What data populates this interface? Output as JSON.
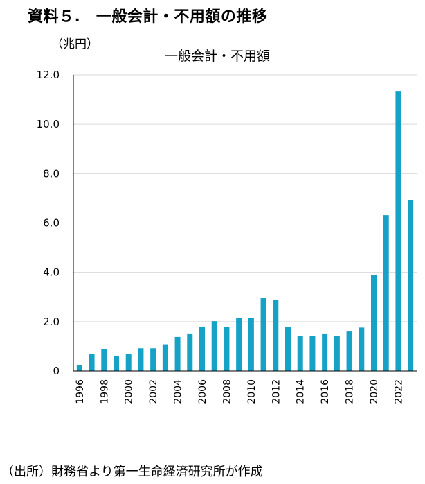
{
  "document": {
    "title": "資料５.　一般会計・不用額の推移",
    "unit": "（兆円）",
    "source": "（出所）財務省より第一生命経済研究所が作成"
  },
  "colors": {
    "bar": "#16a1c7",
    "grid": "#d9d9d9",
    "axis": "#000000"
  },
  "chart_data": {
    "type": "bar",
    "title": "一般会計・不用額",
    "xlabel": "",
    "ylabel": "（兆円）",
    "ylim": [
      0,
      12
    ],
    "yticks": [
      0,
      2,
      4,
      6,
      8,
      10,
      12
    ],
    "ytick_labels": [
      "0",
      "2.0",
      "4.0",
      "6.0",
      "8.0",
      "10.0",
      "12.0"
    ],
    "grid": true,
    "categories": [
      1996,
      1997,
      1998,
      1999,
      2000,
      2001,
      2002,
      2003,
      2004,
      2005,
      2006,
      2007,
      2008,
      2009,
      2010,
      2011,
      2012,
      2013,
      2014,
      2015,
      2016,
      2017,
      2018,
      2019,
      2020,
      2021,
      2022,
      2023
    ],
    "xtick_labels": [
      "1996",
      "1998",
      "2000",
      "2002",
      "2004",
      "2006",
      "2008",
      "2010",
      "2012",
      "2014",
      "2016",
      "2018",
      "2020",
      "2022"
    ],
    "series": [
      {
        "name": "一般会計・不用額",
        "values": [
          0.25,
          0.7,
          0.88,
          0.62,
          0.7,
          0.92,
          0.92,
          1.08,
          1.38,
          1.52,
          1.8,
          2.02,
          1.8,
          2.14,
          2.14,
          2.95,
          2.88,
          1.78,
          1.42,
          1.42,
          1.52,
          1.42,
          1.6,
          1.76,
          3.9,
          6.32,
          11.35,
          6.92
        ]
      }
    ]
  }
}
